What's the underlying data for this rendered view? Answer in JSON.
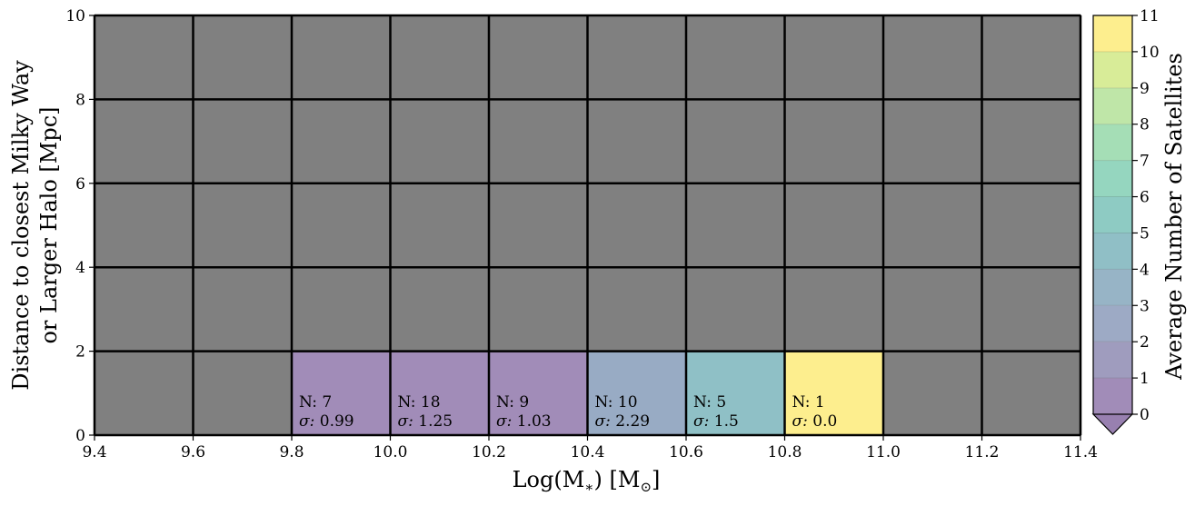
{
  "chart_data": {
    "type": "heatmap",
    "xlabel_base": "Log(M",
    "xlabel_sub1": "∗",
    "xlabel_mid": ") [M",
    "xlabel_sub2": "⊙",
    "xlabel_end": "]",
    "ylabel_line1": "Distance to closest Milky Way",
    "ylabel_line2": "or Larger Halo [Mpc]",
    "x_edges": [
      9.4,
      9.6,
      9.8,
      10.0,
      10.2,
      10.4,
      10.6,
      10.8,
      11.0,
      11.2,
      11.4
    ],
    "y_edges": [
      0,
      2,
      4,
      6,
      8,
      10
    ],
    "xlim": [
      9.4,
      11.4
    ],
    "ylim": [
      0,
      10
    ],
    "x_ticks": [
      "9.4",
      "9.6",
      "9.8",
      "10.0",
      "10.2",
      "10.4",
      "10.6",
      "10.8",
      "11.0",
      "11.2",
      "11.4"
    ],
    "y_ticks": [
      "0",
      "2",
      "4",
      "6",
      "8",
      "10"
    ],
    "empty_color": "#808080",
    "grid": true,
    "cells": [
      {
        "x0": 9.8,
        "x1": 10.0,
        "y0": 0,
        "y1": 2,
        "value": 0.2,
        "n_label": "N: 7",
        "sigma_value": "0.99",
        "color": "#a18cb8"
      },
      {
        "x0": 10.0,
        "x1": 10.2,
        "y0": 0,
        "y1": 2,
        "value": 0.3,
        "n_label": "N: 18",
        "sigma_value": "1.25",
        "color": "#a18cb8"
      },
      {
        "x0": 10.2,
        "x1": 10.4,
        "y0": 0,
        "y1": 2,
        "value": 0.3,
        "n_label": "N: 9",
        "sigma_value": "1.03",
        "color": "#a18cb8"
      },
      {
        "x0": 10.4,
        "x1": 10.6,
        "y0": 0,
        "y1": 2,
        "value": 2.5,
        "n_label": "N: 10",
        "sigma_value": "2.29",
        "color": "#98abc4"
      },
      {
        "x0": 10.6,
        "x1": 10.8,
        "y0": 0,
        "y1": 2,
        "value": 4.5,
        "n_label": "N: 5",
        "sigma_value": "1.5",
        "color": "#8fc0c6"
      },
      {
        "x0": 10.8,
        "x1": 11.0,
        "y0": 0,
        "y1": 2,
        "value": 11,
        "n_label": "N: 1",
        "sigma_value": "0.0",
        "color": "#fdee8e"
      }
    ],
    "sigma_prefix": "σ:",
    "colorbar": {
      "label": "Average Number of Satellites",
      "ticks": [
        "0",
        "1",
        "2",
        "3",
        "4",
        "5",
        "6",
        "7",
        "8",
        "9",
        "10",
        "11"
      ],
      "min": 0,
      "max": 11,
      "extend": "min",
      "levels": [
        "#a18cb8",
        "#9f9cbe",
        "#9daac5",
        "#97b4c6",
        "#90bfc6",
        "#8ecbc3",
        "#95d6bf",
        "#a5deb6",
        "#bfe6a8",
        "#d8ec98",
        "#f4ef8f"
      ],
      "top_color": "#fdee8e",
      "extend_color": "#9880b0"
    }
  }
}
